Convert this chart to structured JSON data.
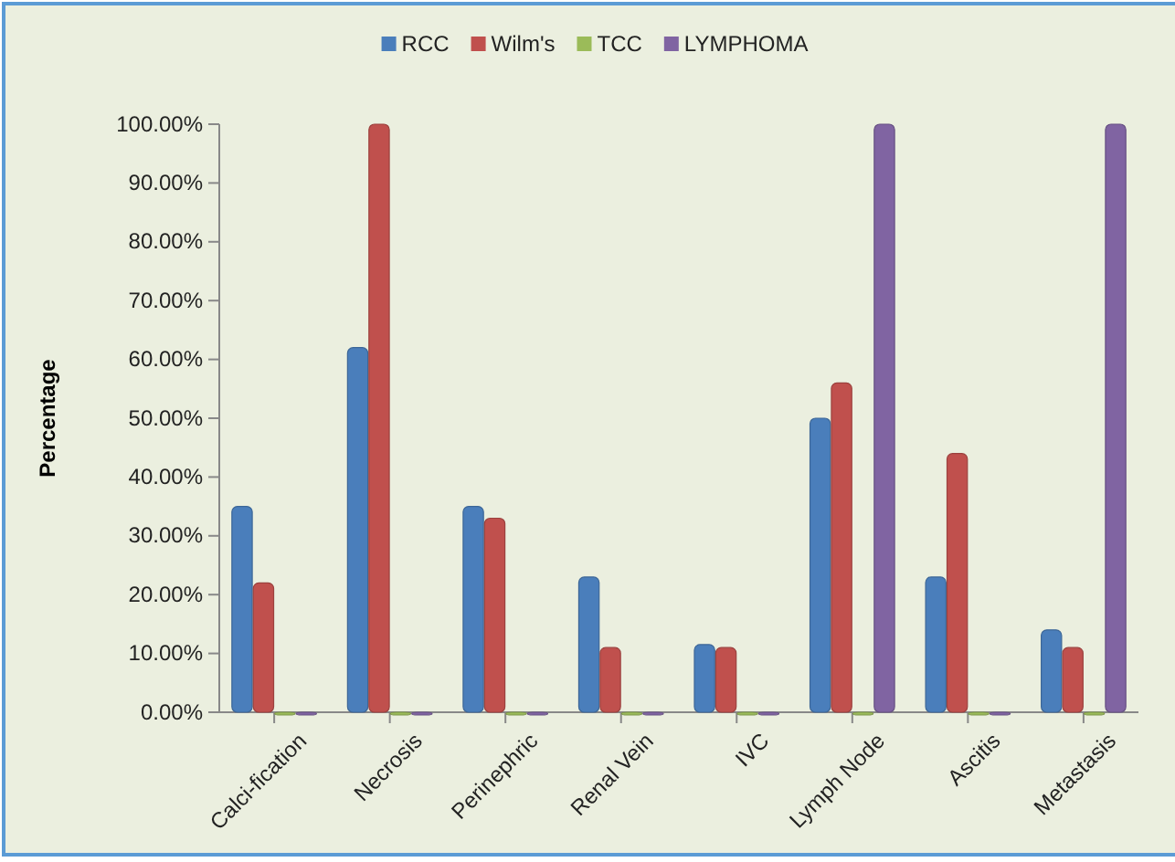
{
  "chart_data": {
    "type": "bar",
    "ylabel": "Percentage",
    "categories": [
      "Calci-fication",
      "Necrosis",
      "Perinephric",
      "Renal Vein",
      "IVC",
      "Lymph Node",
      "Ascitis",
      "Metastasis"
    ],
    "series": [
      {
        "name": "RCC",
        "color": "#4a7ebb",
        "values": [
          35,
          62,
          35,
          23,
          11.5,
          50,
          23,
          14
        ]
      },
      {
        "name": "Wilm's",
        "color": "#c0504d",
        "values": [
          22,
          100,
          33,
          11,
          11,
          56,
          44,
          11
        ]
      },
      {
        "name": "TCC",
        "color": "#9bbb59",
        "values": [
          0,
          0,
          0,
          0,
          0,
          0,
          0,
          0
        ]
      },
      {
        "name": "LYMPHOMA",
        "color": "#8064a2",
        "values": [
          0,
          0,
          0,
          0,
          0,
          100,
          0,
          100
        ]
      }
    ],
    "ylim": [
      0,
      100
    ],
    "yticks": [
      {
        "value": 0,
        "label": "0.00%"
      },
      {
        "value": 10,
        "label": "10.00%"
      },
      {
        "value": 20,
        "label": "20.00%"
      },
      {
        "value": 30,
        "label": "30.00%"
      },
      {
        "value": 40,
        "label": "40.00%"
      },
      {
        "value": 50,
        "label": "50.00%"
      },
      {
        "value": 60,
        "label": "60.00%"
      },
      {
        "value": 70,
        "label": "70.00%"
      },
      {
        "value": 80,
        "label": "80.00%"
      },
      {
        "value": 90,
        "label": "90.00%"
      },
      {
        "value": 100,
        "label": "100.00%"
      }
    ],
    "grid": false,
    "legend": "top"
  }
}
